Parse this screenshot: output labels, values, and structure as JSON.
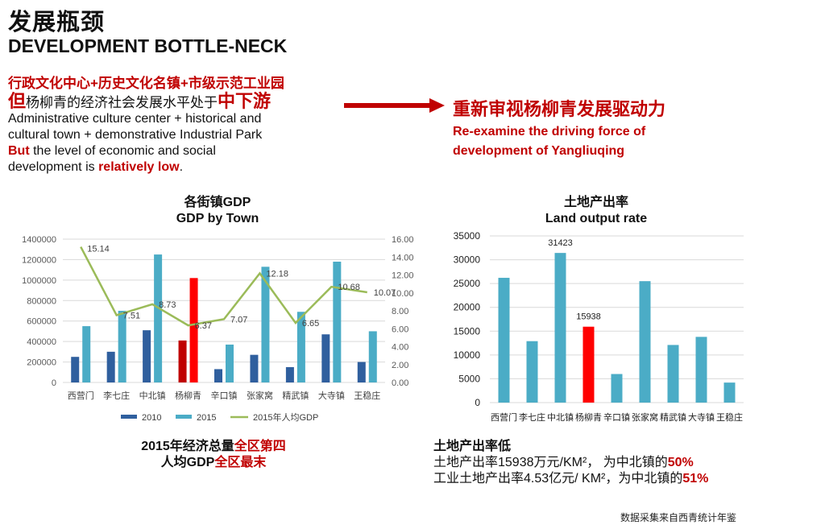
{
  "header": {
    "title_cn": "发展瓶颈",
    "title_en": "DEVELOPMENT BOTTLE-NECK"
  },
  "intro": {
    "line1": "行政文化中心+历史文化名镇+市级示范工业园",
    "line2_prefix": "但",
    "line2_mid": "杨柳青的经济社会发展水平处于",
    "line2_em": "中下游",
    "en_line1": "Administrative culture center + historical and",
    "en_line2": "cultural town + demonstrative Industrial Park",
    "en_but": "But",
    "en_line3": " the level of economic and social",
    "en_line4_prefix": "development is ",
    "en_line4_em": "relatively low",
    "en_line4_suffix": "."
  },
  "conclusion": {
    "cn": "重新审视杨柳青发展驱动力",
    "en_line1": "Re-examine the driving force of",
    "en_line2": "development of Yangliuqing"
  },
  "chart_data": [
    {
      "type": "bar",
      "title_cn": "各街镇GDP",
      "title_en": "GDP by Town",
      "categories": [
        "西营门",
        "李七庄",
        "中北镇",
        "杨柳青",
        "辛口镇",
        "张家窝",
        "精武镇",
        "大寺镇",
        "王稳庄"
      ],
      "series": [
        {
          "name": "2010",
          "type": "bar",
          "axis": "left",
          "color": "#2f5f9e",
          "values": [
            250000,
            300000,
            510000,
            410000,
            130000,
            270000,
            150000,
            470000,
            200000
          ]
        },
        {
          "name": "2015",
          "type": "bar",
          "axis": "left",
          "color": "#4bacc6",
          "values": [
            550000,
            700000,
            1250000,
            1020000,
            370000,
            1130000,
            690000,
            1180000,
            500000
          ]
        },
        {
          "name": "2015年人均GDP",
          "type": "line",
          "axis": "right",
          "color": "#9bbb59",
          "values": [
            15.14,
            7.51,
            8.73,
            6.37,
            7.07,
            12.18,
            6.65,
            10.68,
            10.07
          ]
        }
      ],
      "highlight": {
        "category": "杨柳青",
        "colors": {
          "2010": "#c00000",
          "2015": "#ff0000"
        }
      },
      "ylim": [
        0,
        1400000
      ],
      "y_ticks": [
        "0",
        "200000",
        "400000",
        "600000",
        "800000",
        "1000000",
        "1200000",
        "1400000"
      ],
      "y2lim": [
        0,
        16
      ],
      "y2_ticks": [
        "0.00",
        "2.00",
        "4.00",
        "6.00",
        "8.00",
        "10.00",
        "12.00",
        "14.00",
        "16.00"
      ],
      "line_labels": [
        "15.14",
        "7.51",
        "8.73",
        "6.37",
        "7.07",
        "12.18",
        "6.65",
        "10.68",
        "10.07"
      ],
      "legend": {
        "position": "bottom",
        "items": [
          "2010",
          "2015",
          "2015年人均GDP"
        ]
      },
      "grid": true
    },
    {
      "type": "bar",
      "title_cn": "土地产出率",
      "title_en": "Land output rate",
      "categories": [
        "西营门",
        "李七庄",
        "中北镇",
        "杨柳青",
        "辛口镇",
        "张家窝",
        "精武镇",
        "大寺镇",
        "王稳庄"
      ],
      "values": [
        26200,
        12900,
        31423,
        15938,
        6000,
        25500,
        12100,
        13800,
        4200
      ],
      "bar_color": "#4bacc6",
      "highlight": {
        "category": "杨柳青",
        "color": "#ff0000"
      },
      "data_labels": {
        "中北镇": "31423",
        "杨柳青": "15938"
      },
      "ylim": [
        0,
        35000
      ],
      "y_ticks": [
        "0",
        "5000",
        "10000",
        "15000",
        "20000",
        "25000",
        "30000",
        "35000"
      ],
      "grid": true
    }
  ],
  "summary_left": {
    "line1_a": "2015年经济总量",
    "line1_b": "全区第四",
    "line2_a": "人均GDP",
    "line2_b": "全区最末"
  },
  "summary_right": {
    "heading": "土地产出率低",
    "line1_a": "土地产出率15938万元/KM²，    为中北镇的",
    "line1_b": "50%",
    "line2_a": "工业土地产出率4.53亿元/ KM²，为中北镇的",
    "line2_b": "51%"
  },
  "source": "数据采集来自西青统计年鉴"
}
